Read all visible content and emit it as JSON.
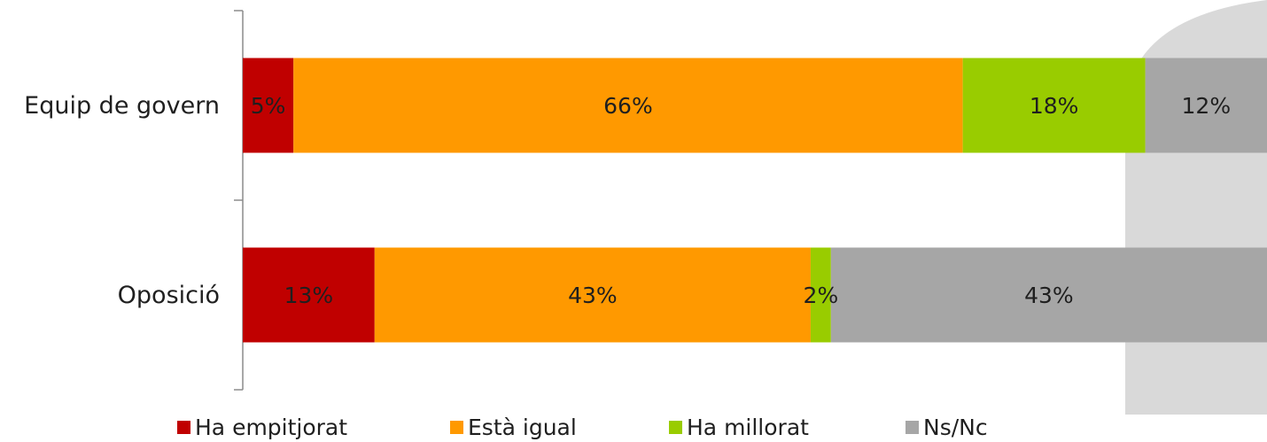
{
  "chart_data": {
    "type": "bar",
    "orientation": "horizontal",
    "stacked": true,
    "categories": [
      "Equip de govern",
      "Oposició"
    ],
    "series": [
      {
        "name": "Ha empitjorat",
        "color": "#c00000",
        "values": [
          5,
          13
        ],
        "labels": [
          "5%",
          "13%"
        ]
      },
      {
        "name": "Està igual",
        "color": "#ff9900",
        "values": [
          66,
          43
        ],
        "labels": [
          "66%",
          "43%"
        ]
      },
      {
        "name": "Ha millorat",
        "color": "#99cc00",
        "values": [
          18,
          2
        ],
        "labels": [
          "18%",
          "2%"
        ]
      },
      {
        "name": "Ns/Nc",
        "color": "#a6a6a6",
        "values": [
          12,
          43
        ],
        "labels": [
          "12%",
          "43%"
        ]
      }
    ],
    "xlim": [
      0,
      100
    ],
    "grid": false,
    "legend_position": "bottom"
  }
}
